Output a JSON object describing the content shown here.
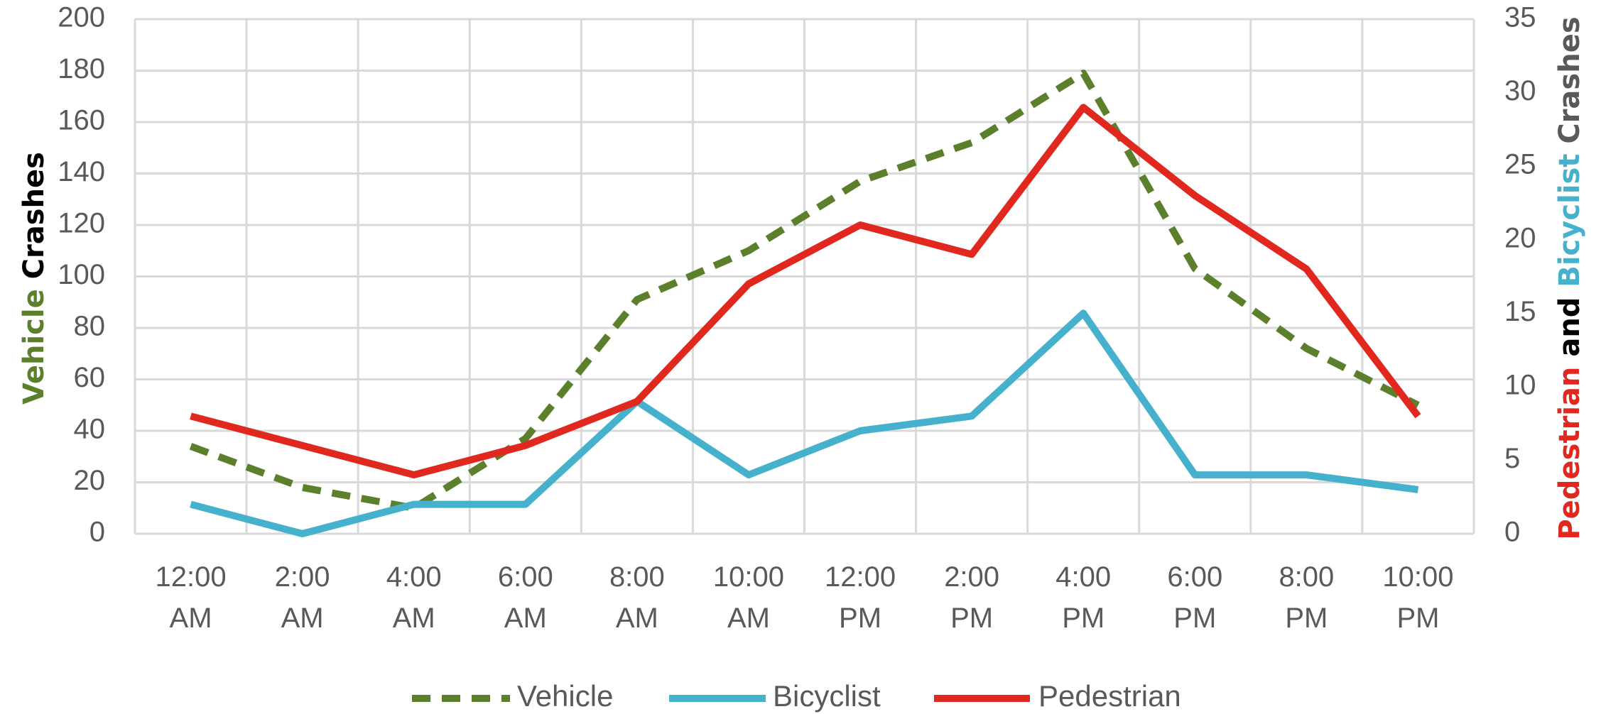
{
  "chart_data": {
    "type": "line",
    "categories": [
      [
        "12:00",
        "AM"
      ],
      [
        "2:00",
        "AM"
      ],
      [
        "4:00",
        "AM"
      ],
      [
        "6:00",
        "AM"
      ],
      [
        "8:00",
        "AM"
      ],
      [
        "10:00",
        "AM"
      ],
      [
        "12:00",
        "PM"
      ],
      [
        "2:00",
        "PM"
      ],
      [
        "4:00",
        "PM"
      ],
      [
        "6:00",
        "PM"
      ],
      [
        "8:00",
        "PM"
      ],
      [
        "10:00",
        "PM"
      ]
    ],
    "y_left": {
      "ylim": [
        0,
        200
      ],
      "ticks": [
        0,
        20,
        40,
        60,
        80,
        100,
        120,
        140,
        160,
        180,
        200
      ]
    },
    "y_right": {
      "ylim": [
        0,
        35
      ],
      "ticks": [
        0,
        5,
        10,
        15,
        20,
        25,
        30,
        35
      ]
    },
    "ylabel_left": [
      {
        "text": "Vehicle",
        "color": "#5b7f2b"
      },
      {
        "text": " Crashes",
        "color": "#000000"
      }
    ],
    "ylabel_right": [
      {
        "text": "Pedestrian",
        "color": "#e0281e"
      },
      {
        "text": " and ",
        "color": "#000000"
      },
      {
        "text": "Bicyclist",
        "color": "#45b1cc"
      },
      {
        "text": " Crashes",
        "color": "#595959"
      }
    ],
    "series": [
      {
        "name": "Vehicle",
        "axis": "left",
        "color": "#5b7f2b",
        "dash": true,
        "values": [
          34,
          18,
          10,
          37,
          91,
          110,
          137,
          152,
          179,
          103,
          72,
          50
        ]
      },
      {
        "name": "Bicyclist",
        "axis": "right",
        "color": "#45b1cc",
        "dash": false,
        "values": [
          2,
          0,
          2,
          2,
          9,
          4,
          7,
          8,
          15,
          4,
          4,
          3
        ]
      },
      {
        "name": "Pedestrian",
        "axis": "right",
        "color": "#e0281e",
        "dash": false,
        "values": [
          8,
          6,
          4,
          6,
          9,
          17,
          21,
          19,
          29,
          23,
          18,
          8
        ]
      }
    ],
    "grid": true,
    "legend": "bottom-center"
  }
}
